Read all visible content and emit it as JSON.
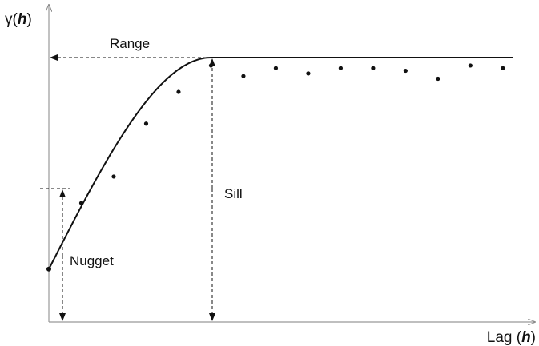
{
  "y_axis": {
    "symbol": "γ(",
    "variable": "h",
    "close": ")"
  },
  "x_axis": {
    "prefix": "Lag (",
    "variable": "h",
    "close": ")"
  },
  "annotations": {
    "range": "Range",
    "sill": "Sill",
    "nugget": "Nugget"
  },
  "model": {
    "type": "spherical",
    "nugget": 0.2,
    "sill": 1.0,
    "range": 5.0
  },
  "samples": [
    {
      "h": 1.0,
      "gamma": 0.45
    },
    {
      "h": 2.0,
      "gamma": 0.55
    },
    {
      "h": 3.0,
      "gamma": 0.75
    },
    {
      "h": 4.0,
      "gamma": 0.87
    },
    {
      "h": 5.0,
      "gamma": 0.97
    },
    {
      "h": 6.0,
      "gamma": 0.93
    },
    {
      "h": 7.0,
      "gamma": 0.96
    },
    {
      "h": 8.0,
      "gamma": 0.94
    },
    {
      "h": 9.0,
      "gamma": 0.96
    },
    {
      "h": 10.0,
      "gamma": 0.96
    },
    {
      "h": 11.0,
      "gamma": 0.95
    },
    {
      "h": 12.0,
      "gamma": 0.92
    },
    {
      "h": 13.0,
      "gamma": 0.97
    },
    {
      "h": 14.0,
      "gamma": 0.96
    }
  ],
  "x_max": 14.3
}
